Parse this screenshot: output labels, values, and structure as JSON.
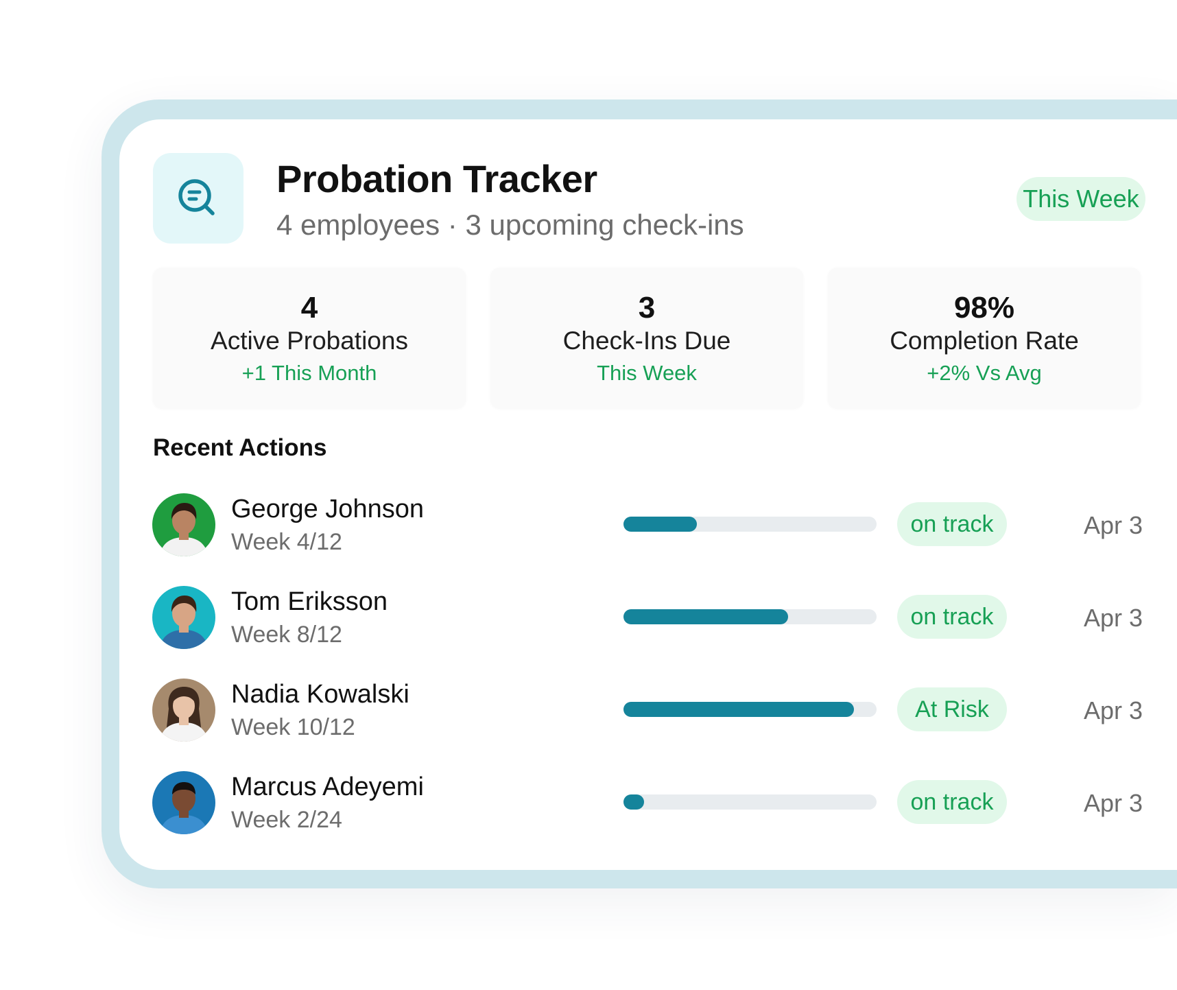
{
  "header": {
    "icon": "search-message-icon",
    "title": "Probation Tracker",
    "subtitle": "4 employees · 3 upcoming check-ins",
    "period_badge": "This Week"
  },
  "stats": [
    {
      "value": "4",
      "label": "Active Probations",
      "sub": "+1 This Month"
    },
    {
      "value": "3",
      "label": "Check-Ins Due",
      "sub": "This Week"
    },
    {
      "value": "98%",
      "label": "Completion Rate",
      "sub": "+2% Vs Avg"
    }
  ],
  "recent": {
    "title": "Recent Actions",
    "items": [
      {
        "name": "George Johnson",
        "week": "Week 4/12",
        "progress": 0.29,
        "status": "on track",
        "date": "Apr 3",
        "avatar_bg": "#1f9d3f",
        "skin": "#b98463",
        "hair": "#2a1a12",
        "shirt": "#f2f2f2"
      },
      {
        "name": "Tom Eriksson",
        "week": "Week 8/12",
        "progress": 0.65,
        "status": "on track",
        "date": "Apr 3",
        "avatar_bg": "#19b6c4",
        "skin": "#d7a585",
        "hair": "#3a2416",
        "shirt": "#2e6fa8"
      },
      {
        "name": "Nadia Kowalski",
        "week": "Week 10/12",
        "progress": 0.91,
        "status": "At Risk",
        "date": "Apr 3",
        "avatar_bg": "#a68a6d",
        "skin": "#e8c3a8",
        "hair": "#3e2a1e",
        "shirt": "#f4f4f4"
      },
      {
        "name": "Marcus Adeyemi",
        "week": "Week 2/24",
        "progress": 0.08,
        "status": "on track",
        "date": "Apr 3",
        "avatar_bg": "#1b78b5",
        "skin": "#7a4b33",
        "hair": "#141010",
        "shirt": "#3b8fd0"
      }
    ]
  },
  "colors": {
    "accent": "#15849b",
    "positive": "#17a055",
    "positive_bg": "#e1f8e9",
    "frame": "#cde6ec"
  }
}
